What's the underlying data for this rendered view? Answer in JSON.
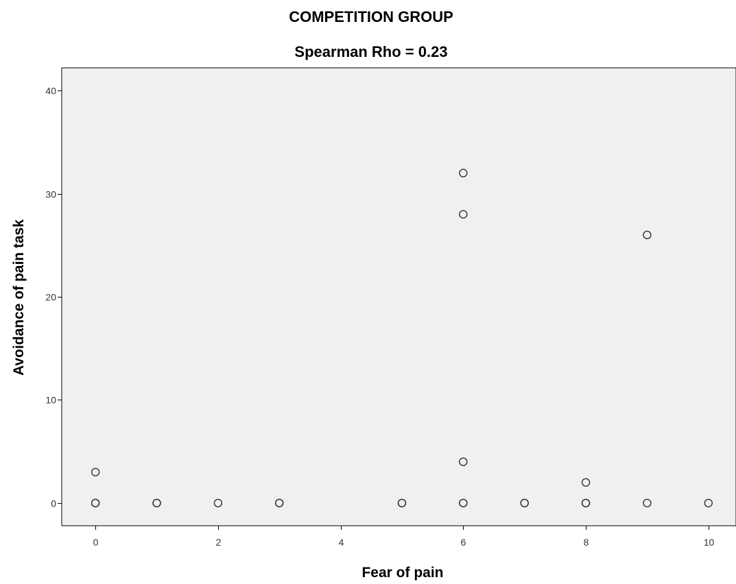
{
  "chart_data": {
    "type": "scatter",
    "title": "COMPETITION GROUP",
    "subtitle": "Spearman Rho = 0.23",
    "xlabel": "Fear of pain",
    "ylabel": "Avoidance of pain task",
    "xlim": [
      -0.55,
      10.45
    ],
    "ylim": [
      -2.2,
      42.2
    ],
    "xticks": [
      0,
      2,
      4,
      6,
      8,
      10
    ],
    "yticks": [
      0,
      10,
      20,
      30,
      40
    ],
    "grid": false,
    "legend": "none",
    "colors": {
      "plot_background": "#f0f0f0",
      "marker_stroke": "#333333",
      "axis": "#000000"
    },
    "points": [
      {
        "x": 0,
        "y": 3
      },
      {
        "x": 0,
        "y": 0
      },
      {
        "x": 0,
        "y": 0
      },
      {
        "x": 1,
        "y": 0
      },
      {
        "x": 1,
        "y": 0
      },
      {
        "x": 2,
        "y": 0
      },
      {
        "x": 3,
        "y": 0
      },
      {
        "x": 3,
        "y": 0
      },
      {
        "x": 5,
        "y": 0
      },
      {
        "x": 5,
        "y": 0
      },
      {
        "x": 6,
        "y": 32
      },
      {
        "x": 6,
        "y": 28
      },
      {
        "x": 6,
        "y": 4
      },
      {
        "x": 6,
        "y": 0
      },
      {
        "x": 6,
        "y": 0
      },
      {
        "x": 7,
        "y": 0
      },
      {
        "x": 7,
        "y": 0
      },
      {
        "x": 8,
        "y": 2
      },
      {
        "x": 8,
        "y": 0
      },
      {
        "x": 8,
        "y": 0
      },
      {
        "x": 9,
        "y": 26
      },
      {
        "x": 9,
        "y": 0
      },
      {
        "x": 10,
        "y": 0
      }
    ]
  }
}
